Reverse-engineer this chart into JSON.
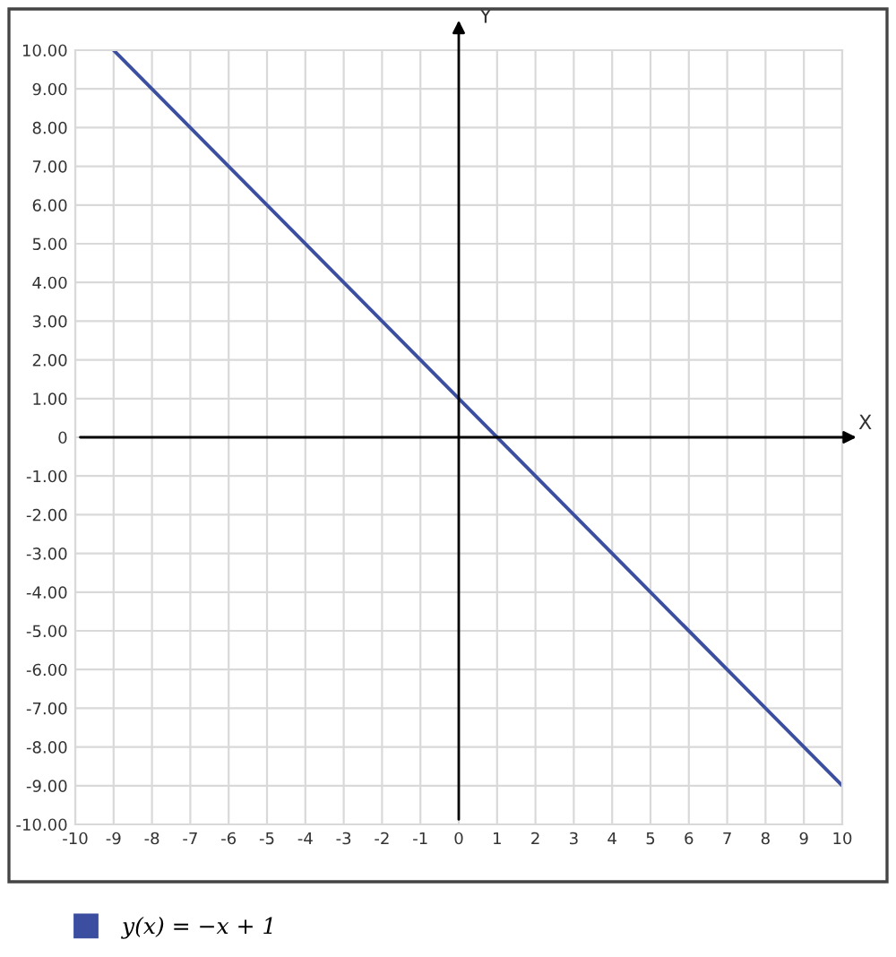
{
  "chart_data": {
    "type": "line",
    "xlabel": "X",
    "ylabel": "Y",
    "x": [
      -9,
      10
    ],
    "series": [
      {
        "name": "y(x) = −x + 1",
        "color": "#3b4ea0",
        "values": [
          10,
          -9
        ]
      }
    ],
    "xlim": [
      -10,
      10
    ],
    "ylim": [
      -10,
      10
    ],
    "xticks": [
      -10,
      -9,
      -8,
      -7,
      -6,
      -5,
      -4,
      -3,
      -2,
      -1,
      0,
      1,
      2,
      3,
      4,
      5,
      6,
      7,
      8,
      9,
      10
    ],
    "yticks": [
      {
        "value": -10,
        "label": "-10.00"
      },
      {
        "value": -9,
        "label": "-9.00"
      },
      {
        "value": -8,
        "label": "-8.00"
      },
      {
        "value": -7,
        "label": "-7.00"
      },
      {
        "value": -6,
        "label": "-6.00"
      },
      {
        "value": -5,
        "label": "-5.00"
      },
      {
        "value": -4,
        "label": "-4.00"
      },
      {
        "value": -3,
        "label": "-3.00"
      },
      {
        "value": -2,
        "label": "-2.00"
      },
      {
        "value": -1,
        "label": "-1.00"
      },
      0,
      {
        "value": 1,
        "label": "1.00"
      },
      {
        "value": 2,
        "label": "2.00"
      },
      {
        "value": 3,
        "label": "3.00"
      },
      {
        "value": 4,
        "label": "4.00"
      },
      {
        "value": 5,
        "label": "5.00"
      },
      {
        "value": 6,
        "label": "6.00"
      },
      {
        "value": 7,
        "label": "7.00"
      },
      {
        "value": 8,
        "label": "8.00"
      },
      {
        "value": 9,
        "label": "9.00"
      },
      {
        "value": 10,
        "label": "10.00"
      }
    ],
    "grid": true,
    "legend": "bottom"
  }
}
